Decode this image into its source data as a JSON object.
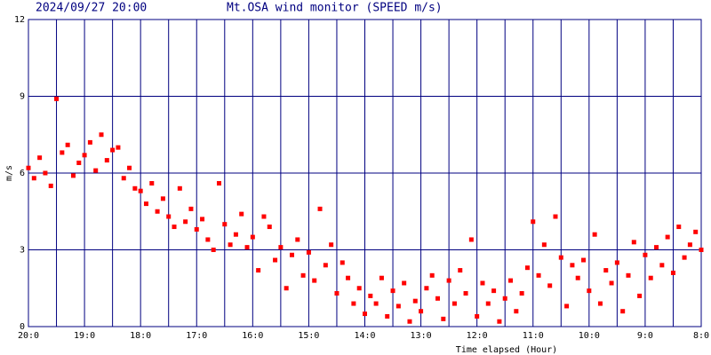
{
  "chart_data": {
    "type": "scatter",
    "date": "2024/09/27 20:00",
    "title": "Mt.OSA wind monitor (SPEED m/s)",
    "y_label": "m/s",
    "x_label": "Time elapsed (Hour)",
    "color": "#ff0000",
    "grid_color": "#000080",
    "grid": true,
    "xlim": [
      0,
      12
    ],
    "ylim": [
      0,
      12
    ],
    "yticks": [
      0,
      3,
      6,
      9,
      12
    ],
    "xticks": [
      {
        "value": 0,
        "label": "20:0"
      },
      {
        "value": 1,
        "label": "19:0"
      },
      {
        "value": 2,
        "label": "18:0"
      },
      {
        "value": 3,
        "label": "17:0"
      },
      {
        "value": 4,
        "label": "16:0"
      },
      {
        "value": 5,
        "label": "15:0"
      },
      {
        "value": 6,
        "label": "14:0"
      },
      {
        "value": 7,
        "label": "13:0"
      },
      {
        "value": 8,
        "label": "12:0"
      },
      {
        "value": 9,
        "label": "11:0"
      },
      {
        "value": 10,
        "label": "10:0"
      },
      {
        "value": 11,
        "label": "9:0"
      },
      {
        "value": 12,
        "label": "8:0"
      }
    ],
    "xminor": [
      0.5,
      1.5,
      2.5,
      3.5,
      4.5,
      5.5,
      6.5,
      7.5,
      8.5,
      9.5,
      10.5,
      11.5
    ],
    "x": [
      0,
      0.1,
      0.2,
      0.3,
      0.4,
      0.5,
      0.6,
      0.7,
      0.8,
      0.9,
      1,
      1.1,
      1.2,
      1.3,
      1.4,
      1.5,
      1.6,
      1.7,
      1.8,
      1.9,
      2,
      2.1,
      2.2,
      2.3,
      2.4,
      2.5,
      2.6,
      2.7,
      2.8,
      2.9,
      3,
      3.1,
      3.2,
      3.3,
      3.4,
      3.5,
      3.6,
      3.7,
      3.8,
      3.9,
      4,
      4.1,
      4.2,
      4.3,
      4.4,
      4.5,
      4.6,
      4.7,
      4.8,
      4.9,
      5,
      5.1,
      5.2,
      5.3,
      5.4,
      5.5,
      5.6,
      5.7,
      5.8,
      5.9,
      6,
      6.1,
      6.2,
      6.3,
      6.4,
      6.5,
      6.6,
      6.7,
      6.8,
      6.9,
      7,
      7.1,
      7.2,
      7.3,
      7.4,
      7.5,
      7.6,
      7.7,
      7.8,
      7.9,
      8,
      8.1,
      8.2,
      8.3,
      8.4,
      8.5,
      8.6,
      8.7,
      8.8,
      8.9,
      9,
      9.1,
      9.2,
      9.3,
      9.4,
      9.5,
      9.6,
      9.7,
      9.8,
      9.9,
      10,
      10.1,
      10.2,
      10.3,
      10.4,
      10.5,
      10.6,
      10.7,
      10.8,
      10.9,
      11,
      11.1,
      11.2,
      11.3,
      11.4,
      11.5,
      11.6,
      11.7,
      11.8,
      11.9,
      12
    ],
    "values": [
      6.2,
      5.8,
      6.6,
      6.0,
      5.5,
      8.9,
      6.8,
      7.1,
      5.9,
      6.4,
      6.7,
      7.2,
      6.1,
      7.5,
      6.5,
      6.9,
      7.0,
      5.8,
      6.2,
      5.4,
      5.3,
      4.8,
      5.6,
      4.5,
      5.0,
      4.3,
      3.9,
      5.4,
      4.1,
      4.6,
      3.8,
      4.2,
      3.4,
      3.0,
      5.6,
      4.0,
      3.2,
      3.6,
      4.4,
      3.1,
      3.5,
      2.2,
      4.3,
      3.9,
      2.6,
      3.1,
      1.5,
      2.8,
      3.4,
      2.0,
      2.9,
      1.8,
      4.6,
      2.4,
      3.2,
      1.3,
      2.5,
      1.9,
      0.9,
      1.5,
      0.5,
      1.2,
      0.9,
      1.9,
      0.4,
      1.4,
      0.8,
      1.7,
      0.2,
      1.0,
      0.6,
      1.5,
      2.0,
      1.1,
      0.3,
      1.8,
      0.9,
      2.2,
      1.3,
      3.4,
      0.4,
      1.7,
      0.9,
      1.4,
      0.2,
      1.1,
      1.8,
      0.6,
      1.3,
      2.3,
      4.1,
      2.0,
      3.2,
      1.6,
      4.3,
      2.7,
      0.8,
      2.4,
      1.9,
      2.6,
      1.4,
      3.6,
      0.9,
      2.2,
      1.7,
      2.5,
      0.6,
      2.0,
      3.3,
      1.2,
      2.8,
      1.9,
      3.1,
      2.4,
      3.5,
      2.1,
      3.9,
      2.7,
      3.2,
      3.7,
      3.0
    ]
  }
}
